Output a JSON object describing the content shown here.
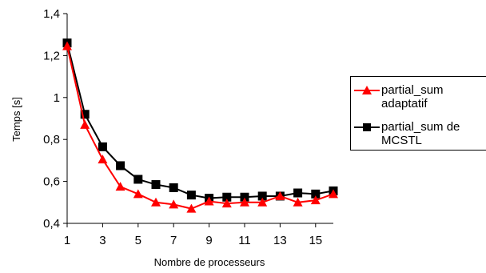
{
  "chart_data": {
    "type": "line",
    "title": "",
    "xlabel": "Nombre de processeurs",
    "ylabel": "Temps [s]",
    "xlim": [
      1,
      16
    ],
    "ylim": [
      0.4,
      1.4
    ],
    "x_ticks": [
      "1",
      "3",
      "5",
      "7",
      "9",
      "11",
      "13",
      "15"
    ],
    "y_ticks": [
      "0,4",
      "0,6",
      "0,8",
      "1",
      "1,2",
      "1,4"
    ],
    "grid": false,
    "legend_position": "right",
    "x": [
      1,
      2,
      3,
      4,
      5,
      6,
      7,
      8,
      9,
      10,
      11,
      12,
      13,
      14,
      15,
      16
    ],
    "series": [
      {
        "name": "partial_sum\nadaptatif",
        "color": "#ff0000",
        "marker": "triangle",
        "values": [
          1.245,
          0.87,
          0.705,
          0.575,
          0.54,
          0.5,
          0.49,
          0.47,
          0.505,
          0.495,
          0.5,
          0.5,
          0.53,
          0.5,
          0.51,
          0.54
        ]
      },
      {
        "name": "partial_sum de\nMCSTL",
        "color": "#000000",
        "marker": "square",
        "values": [
          1.26,
          0.92,
          0.765,
          0.675,
          0.61,
          0.585,
          0.57,
          0.535,
          0.52,
          0.525,
          0.525,
          0.53,
          0.53,
          0.545,
          0.54,
          0.555
        ]
      }
    ]
  }
}
